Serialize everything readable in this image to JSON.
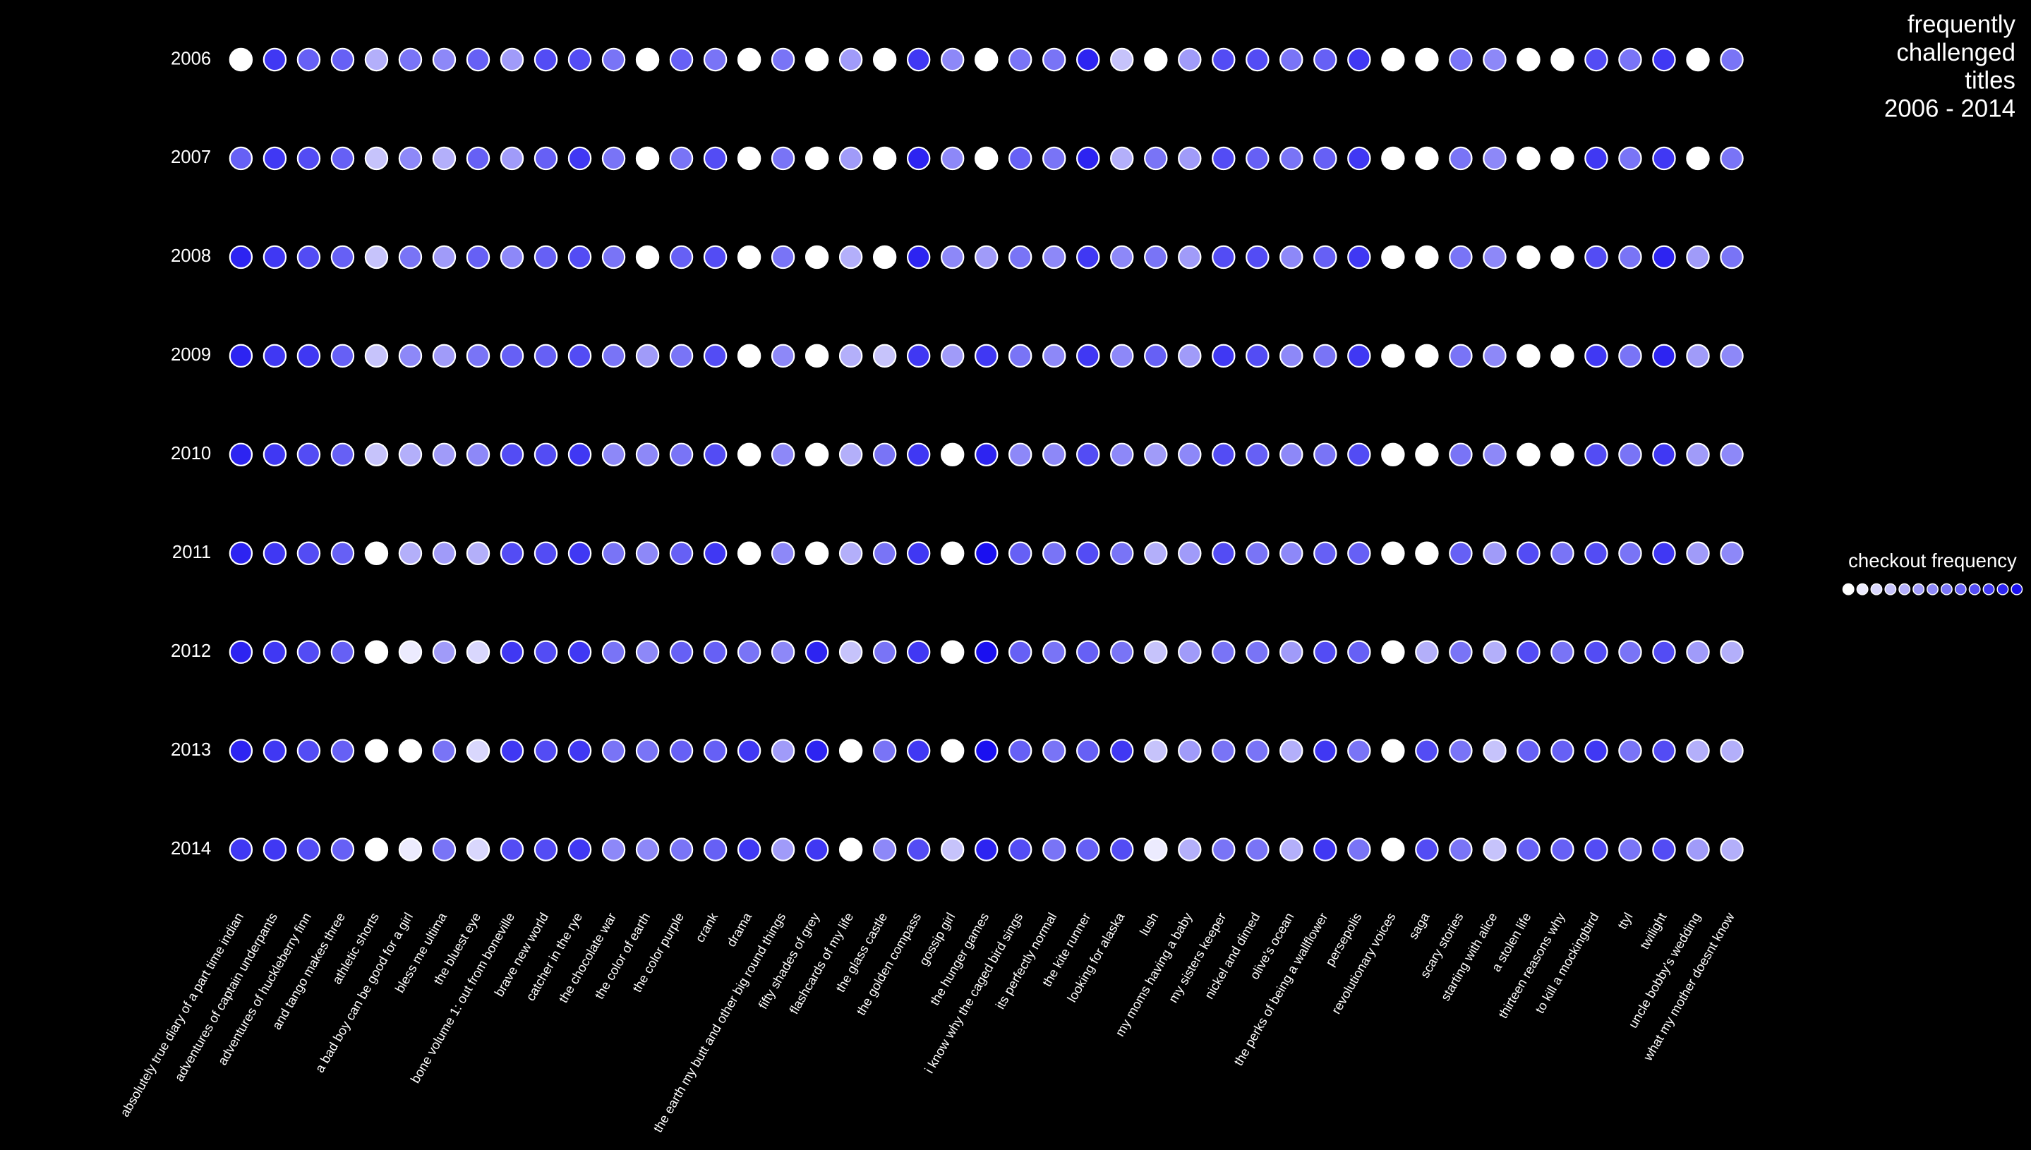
{
  "chart_data": {
    "type": "dotmatrix",
    "title": [
      "frequently",
      "challenged",
      "titles",
      "2006 - 2014"
    ],
    "legend_title": "checkout frequency",
    "colorscale": [
      "#ffffff",
      "#1a10f0"
    ],
    "zlim": [
      0,
      12
    ],
    "rows": [
      "2006",
      "2007",
      "2008",
      "2009",
      "2010",
      "2011",
      "2012",
      "2013",
      "2014"
    ],
    "categories": [
      "absolutely true diary of a part time indian",
      "adventures of captain underpants",
      "adventures of huckleberry finn",
      "and tango makes three",
      "athletic shorts",
      "a bad boy can be good for a girl",
      "bless me ultima",
      "the bluest eye",
      "bone volume 1: out from boneville",
      "brave new world",
      "catcher in the rye",
      "the chocolate war",
      "the color of earth",
      "the color purple",
      "crank",
      "drama",
      "the earth my butt and other big round things",
      "fifty shades of grey",
      "flashcards of my life",
      "the glass castle",
      "the golden compass",
      "gossip girl",
      "the hunger games",
      "i know why the caged bird sings",
      "its perfectly normal",
      "the kite runner",
      "looking for alaska",
      "lush",
      "my moms having a baby",
      "my sisters keeper",
      "nickel and dimed",
      "olive's ocean",
      "the perks of being a wallflower",
      "persepolis",
      "revolutionary voices",
      "saga",
      "scary stories",
      "starting with alice",
      "a stolen life",
      "thirteen reasons why",
      "to kill a mockingbird",
      "ttyl",
      "twilight",
      "uncle bobby's wedding",
      "what my mother doesnt know"
    ],
    "values": [
      [
        0,
        10,
        8,
        8,
        4,
        7,
        6,
        8,
        5,
        9,
        9,
        7,
        0,
        8,
        7,
        0,
        7,
        0,
        5,
        0,
        10,
        6,
        0,
        7,
        7,
        11,
        3,
        0,
        5,
        9,
        9,
        7,
        8,
        10,
        0,
        0,
        7,
        6,
        0,
        0,
        9,
        7,
        10,
        0,
        7
      ],
      [
        8,
        10,
        9,
        8,
        3,
        6,
        4,
        8,
        5,
        8,
        10,
        7,
        0,
        7,
        9,
        0,
        7,
        0,
        5,
        0,
        11,
        6,
        0,
        8,
        7,
        11,
        4,
        7,
        5,
        9,
        8,
        7,
        8,
        10,
        0,
        0,
        7,
        6,
        0,
        0,
        10,
        7,
        10,
        0,
        7
      ],
      [
        11,
        10,
        9,
        8,
        3,
        7,
        5,
        8,
        6,
        8,
        9,
        7,
        0,
        8,
        9,
        0,
        7,
        0,
        4,
        0,
        11,
        6,
        5,
        7,
        6,
        10,
        6,
        7,
        5,
        9,
        9,
        6,
        8,
        10,
        0,
        0,
        7,
        6,
        0,
        0,
        9,
        7,
        11,
        5,
        7
      ],
      [
        11,
        10,
        10,
        8,
        3,
        6,
        5,
        7,
        8,
        8,
        9,
        7,
        5,
        7,
        9,
        0,
        6,
        0,
        4,
        3,
        10,
        5,
        10,
        7,
        6,
        10,
        6,
        8,
        5,
        10,
        9,
        6,
        7,
        10,
        0,
        0,
        7,
        6,
        0,
        0,
        10,
        7,
        11,
        5,
        6
      ],
      [
        11,
        10,
        9,
        8,
        3,
        4,
        5,
        6,
        9,
        9,
        10,
        6,
        6,
        7,
        9,
        0,
        6,
        0,
        4,
        7,
        10,
        0,
        11,
        6,
        6,
        9,
        6,
        5,
        6,
        9,
        8,
        6,
        7,
        9,
        0,
        0,
        7,
        6,
        0,
        0,
        9,
        7,
        10,
        5,
        6
      ],
      [
        11,
        10,
        9,
        8,
        0,
        4,
        5,
        4,
        9,
        9,
        10,
        7,
        6,
        8,
        10,
        0,
        6,
        0,
        4,
        7,
        10,
        0,
        12,
        8,
        7,
        9,
        7,
        4,
        5,
        9,
        7,
        6,
        8,
        8,
        0,
        0,
        8,
        5,
        9,
        7,
        9,
        7,
        10,
        5,
        6
      ],
      [
        11,
        10,
        9,
        8,
        0,
        1,
        5,
        2,
        10,
        9,
        10,
        7,
        6,
        8,
        8,
        7,
        6,
        11,
        3,
        7,
        10,
        0,
        12,
        8,
        7,
        8,
        7,
        3,
        5,
        7,
        7,
        5,
        9,
        8,
        0,
        4,
        7,
        4,
        9,
        7,
        9,
        7,
        9,
        5,
        4
      ],
      [
        11,
        10,
        9,
        8,
        0,
        0,
        7,
        2,
        10,
        9,
        10,
        7,
        7,
        8,
        8,
        10,
        5,
        11,
        0,
        7,
        10,
        0,
        12,
        8,
        7,
        8,
        10,
        3,
        5,
        7,
        7,
        4,
        10,
        7,
        0,
        9,
        7,
        3,
        8,
        8,
        10,
        7,
        9,
        4,
        4
      ],
      [
        10,
        10,
        9,
        8,
        0,
        1,
        7,
        2,
        9,
        9,
        10,
        6,
        6,
        7,
        8,
        10,
        5,
        10,
        0,
        6,
        9,
        3,
        11,
        9,
        7,
        8,
        9,
        1,
        4,
        7,
        7,
        4,
        10,
        7,
        0,
        9,
        7,
        3,
        8,
        8,
        9,
        7,
        9,
        5,
        4
      ]
    ]
  }
}
